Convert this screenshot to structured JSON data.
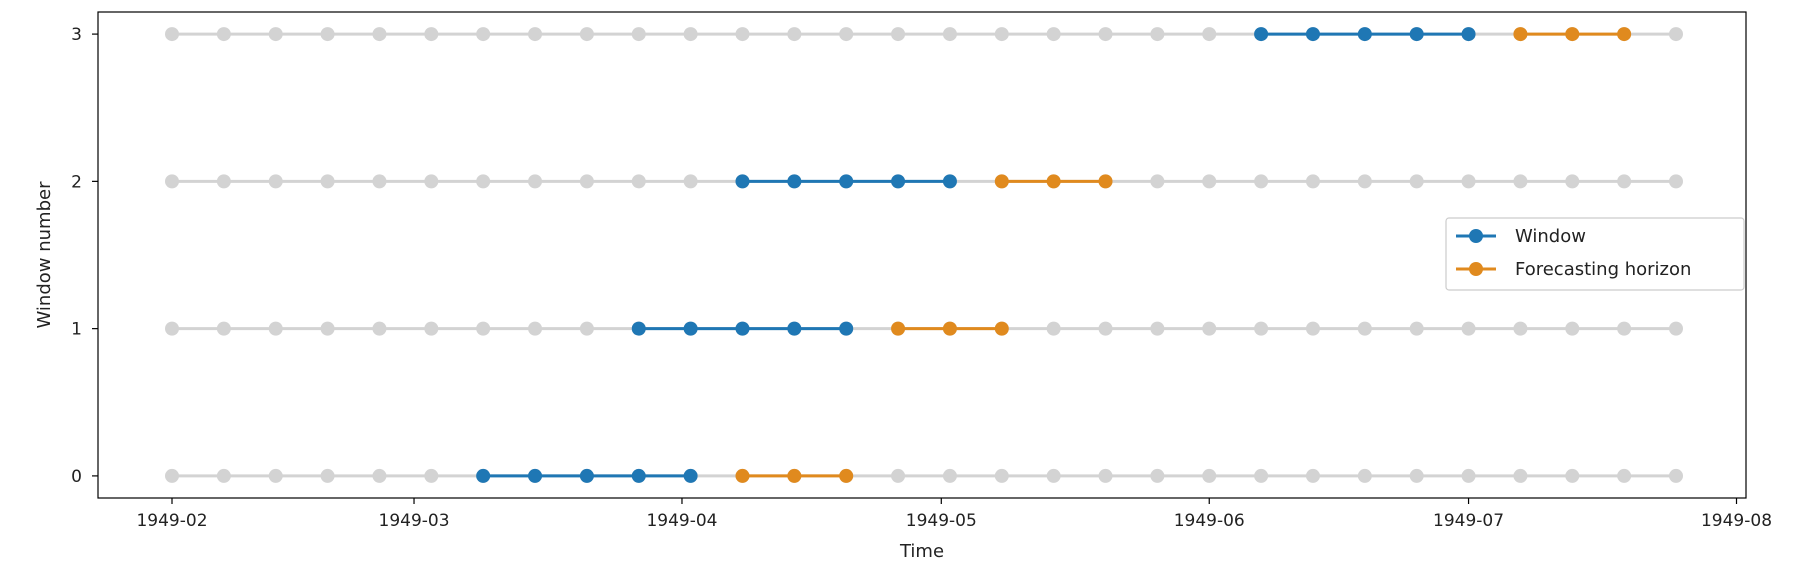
{
  "chart_data": {
    "type": "line",
    "title": "",
    "xlabel": "Time",
    "ylabel": "Window number",
    "x_tick_labels": [
      "1949-02",
      "1949-03",
      "1949-04",
      "1949-05",
      "1949-06",
      "1949-07",
      "1949-08"
    ],
    "y_tick_labels": [
      "0",
      "1",
      "2",
      "3"
    ],
    "x_axis_type": "date",
    "ylim": [
      -0.15,
      3.15
    ],
    "grid": false,
    "legend_position": "center-right",
    "background_points": {
      "color": "#d3d3d3",
      "dates": [
        "1949-02-01",
        "1949-02-07",
        "1949-02-13",
        "1949-02-19",
        "1949-02-25",
        "1949-03-03",
        "1949-03-09",
        "1949-03-15",
        "1949-03-21",
        "1949-03-27",
        "1949-04-02",
        "1949-04-08",
        "1949-04-14",
        "1949-04-20",
        "1949-04-26",
        "1949-05-02",
        "1949-05-08",
        "1949-05-14",
        "1949-05-20",
        "1949-05-26",
        "1949-06-01",
        "1949-06-07",
        "1949-06-13",
        "1949-06-19",
        "1949-06-25",
        "1949-07-01",
        "1949-07-07",
        "1949-07-13",
        "1949-07-19",
        "1949-07-25"
      ],
      "rows": [
        0,
        1,
        2,
        3
      ]
    },
    "series": [
      {
        "name": "Window",
        "color": "#1f77b4",
        "windows": [
          {
            "y": 0,
            "dates": [
              "1949-03-09",
              "1949-03-15",
              "1949-03-21",
              "1949-03-27",
              "1949-04-02"
            ]
          },
          {
            "y": 1,
            "dates": [
              "1949-03-27",
              "1949-04-02",
              "1949-04-08",
              "1949-04-14",
              "1949-04-20"
            ]
          },
          {
            "y": 2,
            "dates": [
              "1949-04-08",
              "1949-04-14",
              "1949-04-20",
              "1949-04-26",
              "1949-05-02"
            ]
          },
          {
            "y": 3,
            "dates": [
              "1949-06-07",
              "1949-06-13",
              "1949-06-19",
              "1949-06-25",
              "1949-07-01"
            ]
          }
        ]
      },
      {
        "name": "Forecasting horizon",
        "color": "#e08a1e",
        "windows": [
          {
            "y": 0,
            "dates": [
              "1949-04-08",
              "1949-04-14",
              "1949-04-20"
            ]
          },
          {
            "y": 1,
            "dates": [
              "1949-04-26",
              "1949-05-02",
              "1949-05-08"
            ]
          },
          {
            "y": 2,
            "dates": [
              "1949-05-08",
              "1949-05-14",
              "1949-05-20"
            ]
          },
          {
            "y": 3,
            "dates": [
              "1949-07-07",
              "1949-07-13",
              "1949-07-19"
            ]
          }
        ]
      }
    ]
  }
}
